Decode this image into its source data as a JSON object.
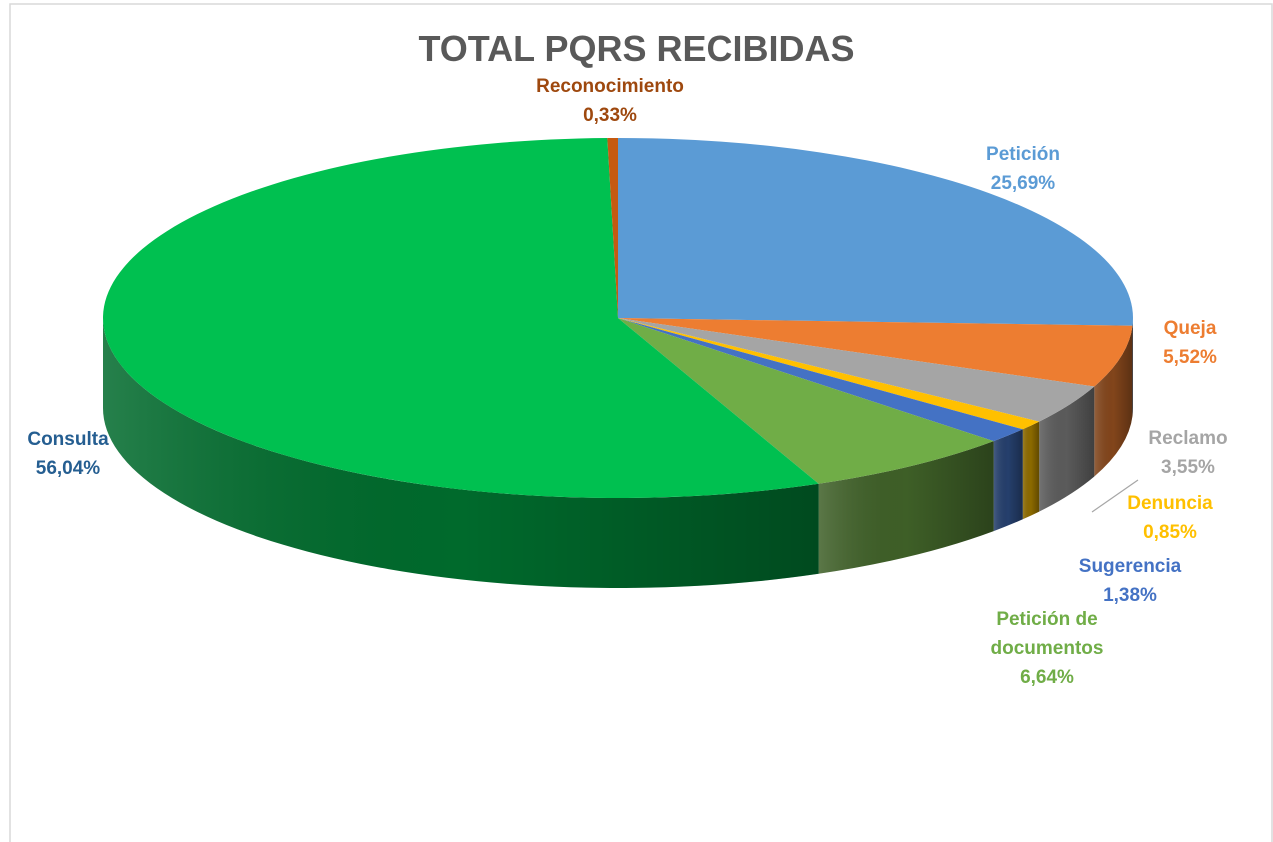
{
  "chart_data": {
    "type": "pie",
    "title": "TOTAL PQRS RECIBIDAS",
    "categories": [
      "Petición",
      "Queja",
      "Reclamo",
      "Denuncia",
      "Sugerencia",
      "Petición de documentos",
      "Consulta",
      "Reconocimiento"
    ],
    "values": [
      25.69,
      5.52,
      3.55,
      0.85,
      1.38,
      6.64,
      56.04,
      0.33
    ],
    "value_labels": [
      "25,69%",
      "5,52%",
      "3,55%",
      "0,85%",
      "1,38%",
      "6,64%",
      "56,04%",
      "0,33%"
    ],
    "colors": [
      "#5b9bd5",
      "#ed7d31",
      "#a5a5a5",
      "#ffc000",
      "#4472c4",
      "#70ad47",
      "#00c050",
      "#c55a11"
    ],
    "label_colors": [
      "#5b9bd5",
      "#ed7d31",
      "#a5a5a5",
      "#ffc000",
      "#4472c4",
      "#70ad47",
      "#255e91",
      "#9e480e"
    ]
  }
}
